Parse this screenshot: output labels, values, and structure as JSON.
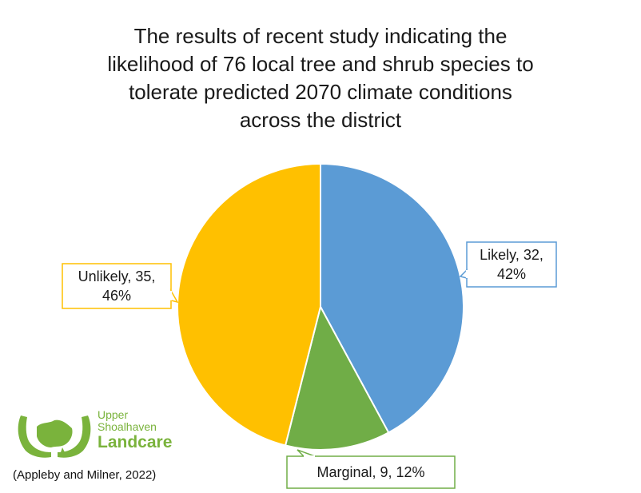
{
  "chart_data": {
    "type": "pie",
    "title_lines": [
      "The results of recent study indicating the",
      "likelihood of 76 local tree and shrub species to",
      "tolerate predicted 2070 climate conditions",
      "across the district"
    ],
    "categories": [
      "Likely",
      "Marginal",
      "Unlikely"
    ],
    "values": [
      32,
      9,
      35
    ],
    "percents": [
      "42%",
      "12%",
      "46%"
    ],
    "colors": [
      "#5b9bd5",
      "#70ad47",
      "#ffc000"
    ],
    "labels": [
      {
        "lines": [
          "Likely, 32,",
          "42%"
        ]
      },
      {
        "lines": [
          "Marginal, 9, 12%"
        ]
      },
      {
        "lines": [
          "Unlikely, 35,",
          "46%"
        ]
      }
    ]
  },
  "logo": {
    "line1": "Upper",
    "line2": "Shoalhaven",
    "line3": "Landcare",
    "color": "#7ab33c"
  },
  "citation": "(Appleby and Milner, 2022)"
}
